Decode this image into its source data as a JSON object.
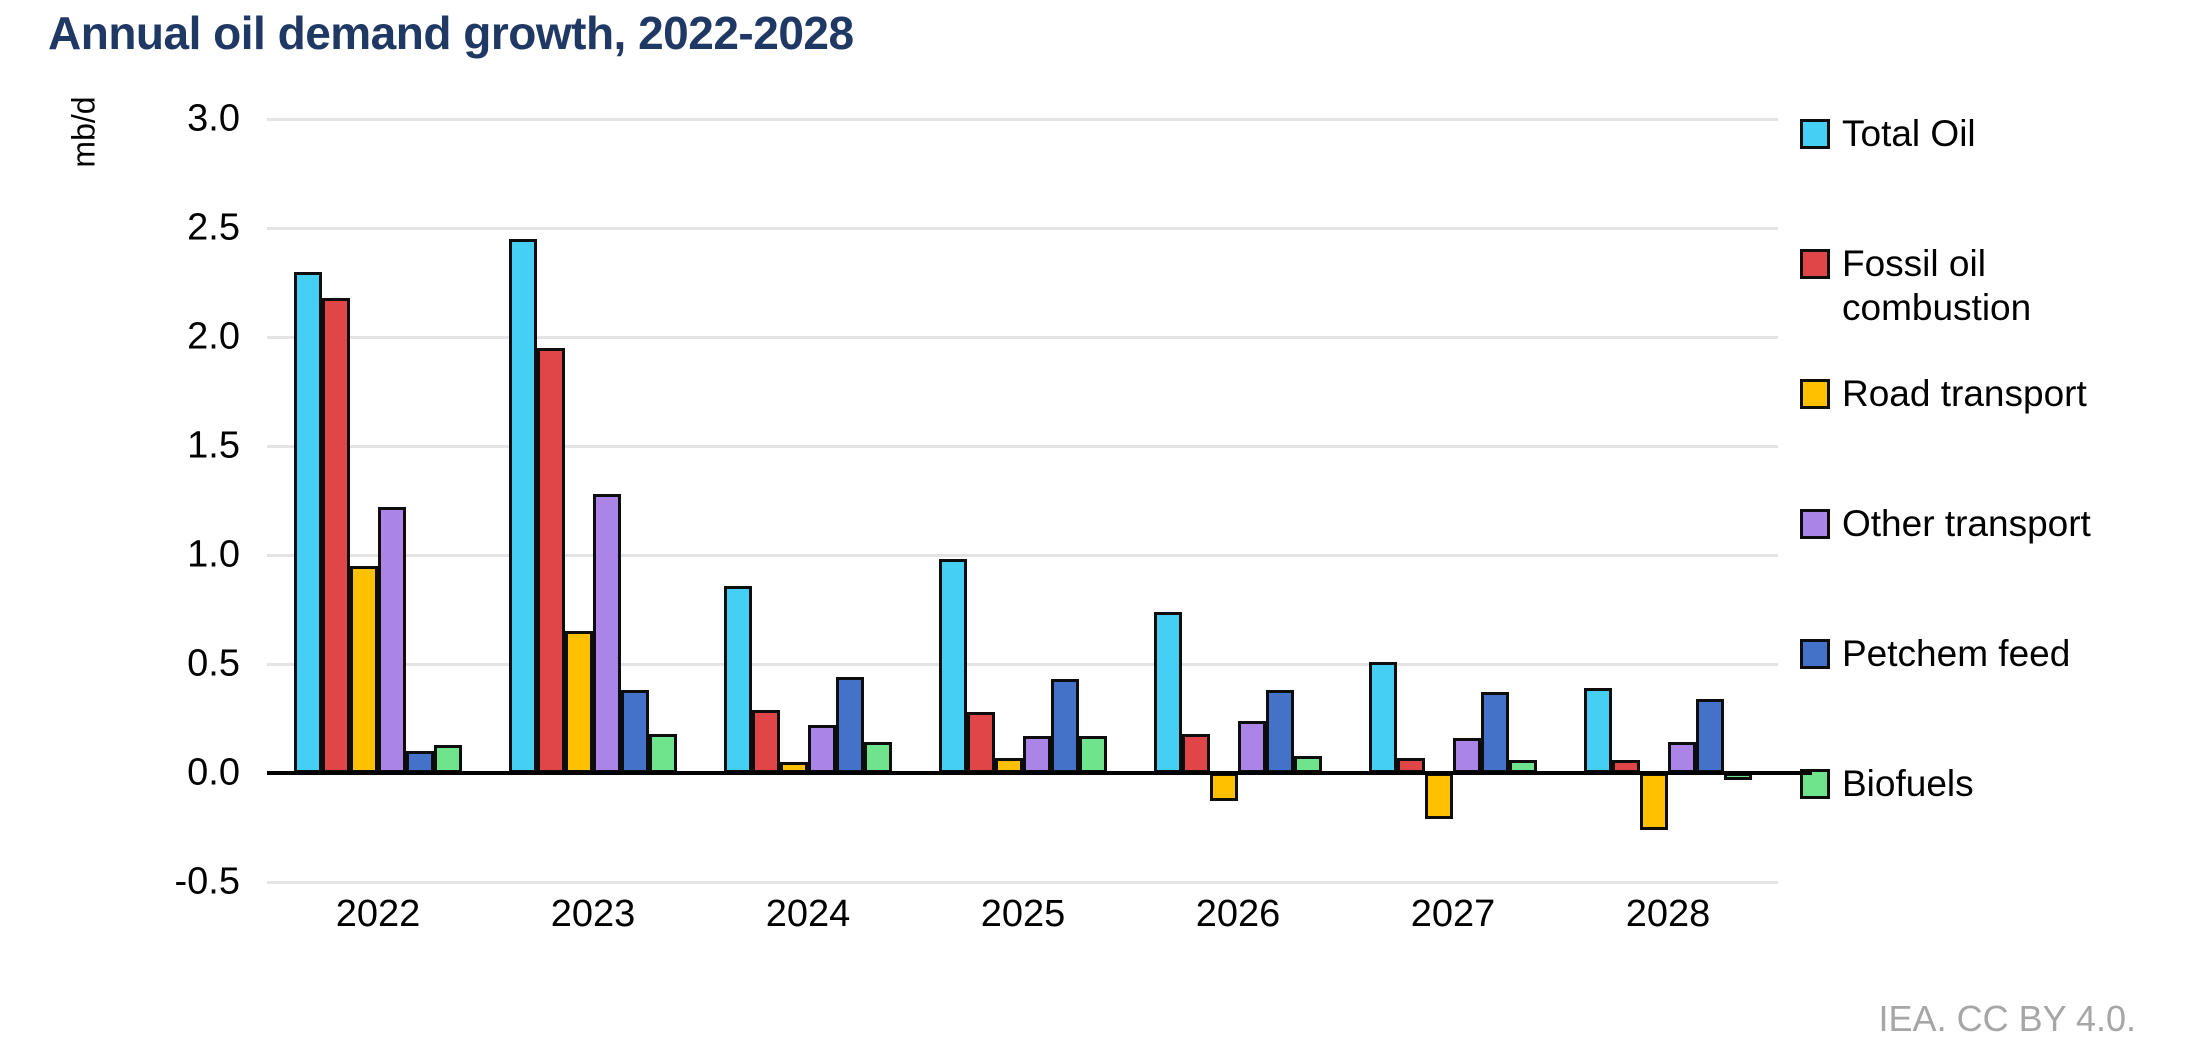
{
  "title": "Annual oil demand growth, 2022-2028",
  "y_axis": {
    "unit": "mb/d",
    "tick_labels": [
      "3.0",
      "2.5",
      "2.0",
      "1.5",
      "1.0",
      "0.5",
      "0.0",
      "-0.5"
    ]
  },
  "attribution": "IEA. CC BY 4.0.",
  "chart_data": {
    "type": "bar",
    "title": "Annual oil demand growth, 2022-2028",
    "ylabel": "mb/d",
    "ylim": [
      -0.5,
      3.0
    ],
    "ytick_step": 0.5,
    "grid": true,
    "legend_position": "right",
    "categories": [
      "2022",
      "2023",
      "2024",
      "2025",
      "2026",
      "2027",
      "2028"
    ],
    "series": [
      {
        "name": "Total Oil",
        "color": "#45CFF5",
        "values": [
          2.3,
          2.45,
          0.86,
          0.98,
          0.74,
          0.51,
          0.39
        ]
      },
      {
        "name": "Fossil oil combustion",
        "color": "#E04547",
        "values": [
          2.18,
          1.95,
          0.29,
          0.28,
          0.18,
          0.07,
          0.06
        ]
      },
      {
        "name": "Road transport",
        "color": "#FFC000",
        "values": [
          0.95,
          0.65,
          0.05,
          0.07,
          -0.13,
          -0.21,
          -0.26
        ]
      },
      {
        "name": "Other transport",
        "color": "#AB84E8",
        "values": [
          1.22,
          1.28,
          0.22,
          0.17,
          0.24,
          0.16,
          0.14
        ]
      },
      {
        "name": "Petchem feed",
        "color": "#4472C8",
        "values": [
          0.1,
          0.38,
          0.44,
          0.43,
          0.38,
          0.37,
          0.34
        ]
      },
      {
        "name": "Biofuels",
        "color": "#6FE48C",
        "values": [
          0.13,
          0.18,
          0.14,
          0.17,
          0.08,
          0.06,
          -0.03
        ]
      }
    ]
  }
}
